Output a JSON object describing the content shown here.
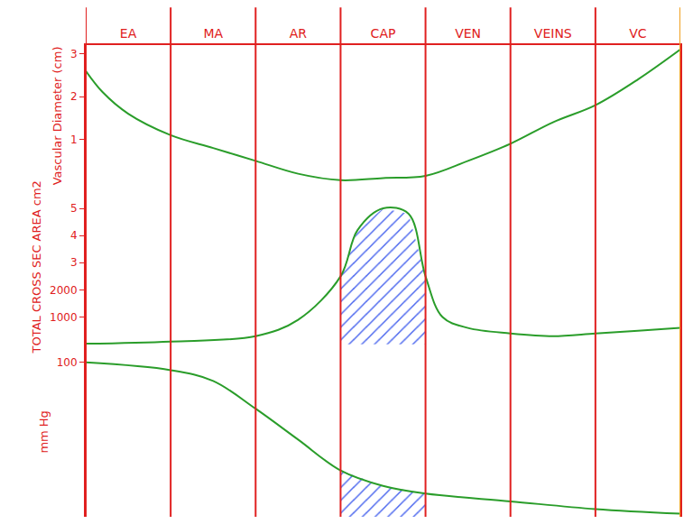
{
  "chart_data": {
    "type": "line",
    "color": "#2a9d2a",
    "grid": true,
    "xlim": [
      0,
      7
    ],
    "xticks": [
      {
        "value": 0.5,
        "label": "EA"
      },
      {
        "value": 1.5,
        "label": "MA"
      },
      {
        "value": 2.5,
        "label": "AR"
      },
      {
        "value": 3.5,
        "label": "CAP"
      },
      {
        "value": 4.5,
        "label": "VEN"
      },
      {
        "value": 5.5,
        "label": "VEINS"
      },
      {
        "value": 6.5,
        "label": "VC"
      }
    ],
    "panels": [
      {
        "y_label": "Vascular Diameter (cm)",
        "x": [
          0,
          0.2,
          0.5,
          1,
          1.5,
          2,
          2.5,
          3,
          3.5,
          4,
          4.5,
          5,
          5.5,
          6,
          6.5,
          7
        ],
        "values": [
          2.6,
          2.1,
          1.6,
          1.1,
          0.8,
          0.5,
          0.2,
          0.05,
          0.1,
          0.15,
          0.5,
          0.9,
          1.4,
          1.8,
          2.4,
          3.1
        ],
        "ylim": [
          -0.1,
          3.2
        ],
        "yticks": [
          1,
          2,
          3
        ]
      },
      {
        "y_label": "TOTAL CROSS SEC AREA cm2",
        "x": [
          0,
          1,
          2,
          2.5,
          3,
          3.2,
          3.5,
          3.8,
          4,
          4.2,
          4.5,
          5,
          5.5,
          6,
          6.5,
          7
        ],
        "values": [
          20,
          100,
          300,
          900,
          2500,
          4200,
          5000,
          4800,
          2500,
          1000,
          600,
          400,
          300,
          400,
          500,
          600
        ],
        "ylim": [
          -100,
          5800
        ],
        "yticks": [
          1000,
          2000,
          {
            "value": 3000,
            "label": "3"
          },
          {
            "value": 4000,
            "label": "4"
          },
          {
            "value": 5000,
            "label": "5"
          }
        ],
        "highlight_x": [
          3,
          4
        ]
      },
      {
        "y_label": "mm Hg",
        "x": [
          0,
          1,
          1.5,
          2,
          2.5,
          3,
          3.5,
          4,
          5,
          6,
          7
        ],
        "values": [
          100,
          95,
          88,
          70,
          50,
          30,
          20,
          15,
          10,
          5,
          2
        ],
        "ylim": [
          0,
          110
        ],
        "yticks": [
          100
        ],
        "highlight_x": [
          3,
          4
        ]
      }
    ]
  }
}
